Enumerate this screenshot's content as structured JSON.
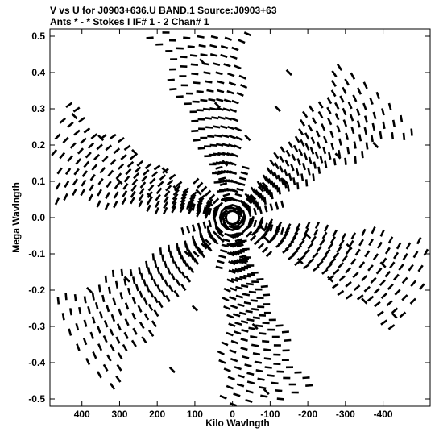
{
  "header": {
    "line1": "V vs U for J0903+636.U BAND.1   Source:J0903+63",
    "line2": "Ants * - *     Stokes I  IF# 1 - 2  Chan# 1"
  },
  "chart_data": {
    "type": "scatter",
    "xlabel": "Kilo Wavlngth",
    "ylabel": "Mega Wavlngth",
    "xlim": [
      485,
      -525
    ],
    "ylim": [
      -0.52,
      0.52
    ],
    "x_axis_reversed": true,
    "xticks": [
      400,
      300,
      200,
      100,
      0,
      -100,
      -200,
      -300,
      -400
    ],
    "xtick_labels": [
      "400",
      "300",
      "200",
      "100",
      "0",
      "-100",
      "-200",
      "-300",
      "-400"
    ],
    "yticks": [
      0.5,
      0.4,
      0.3,
      0.2,
      0.1,
      0.0,
      -0.1,
      -0.2,
      -0.3,
      -0.4,
      -0.5
    ],
    "ytick_labels": [
      "0.5",
      "0.4",
      "0.3",
      "0.2",
      "0.1",
      "0.0",
      "-0.1",
      "-0.2",
      "-0.3",
      "-0.4",
      "-0.5"
    ],
    "grid": false,
    "legend": "none",
    "marker_color": "#000000",
    "pattern": "six-armed star uv-coverage; approximate points shown",
    "points": [
      [
        300,
        0.1
      ],
      [
        220,
        0.06
      ],
      [
        150,
        0.08
      ],
      [
        60,
        0.04
      ],
      [
        -80,
        -0.03
      ],
      [
        -200,
        -0.05
      ],
      [
        -310,
        -0.08
      ],
      [
        -400,
        -0.13
      ],
      [
        -150,
        0.4
      ],
      [
        -120,
        0.3
      ],
      [
        -40,
        0.22
      ],
      [
        30,
        -0.06
      ],
      [
        100,
        -0.25
      ],
      [
        160,
        -0.42
      ],
      [
        420,
        0.28
      ],
      [
        350,
        0.22
      ],
      [
        260,
        0.18
      ],
      [
        180,
        0.13
      ],
      [
        90,
        0.07
      ],
      [
        -90,
        -0.06
      ],
      [
        -180,
        -0.12
      ],
      [
        -260,
        -0.17
      ],
      [
        -350,
        -0.23
      ],
      [
        -430,
        -0.27
      ],
      [
        -380,
        0.2
      ],
      [
        -280,
        0.17
      ],
      [
        -140,
        0.1
      ],
      [
        120,
        -0.1
      ],
      [
        280,
        -0.17
      ],
      [
        380,
        -0.2
      ],
      [
        80,
        0.43
      ],
      [
        40,
        0.31
      ],
      [
        20,
        0.15
      ],
      [
        -30,
        -0.12
      ],
      [
        -60,
        -0.3
      ],
      [
        -90,
        -0.48
      ]
    ]
  }
}
